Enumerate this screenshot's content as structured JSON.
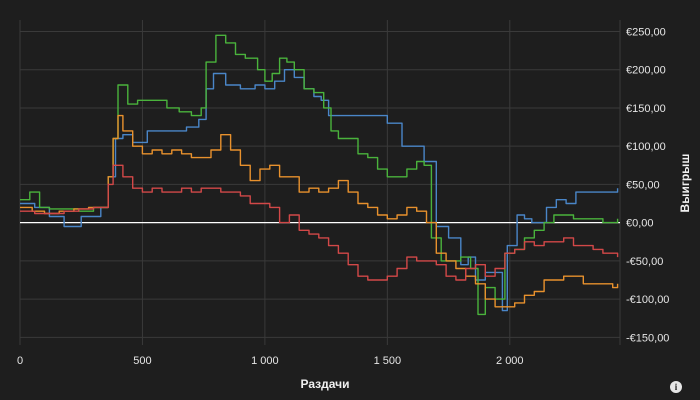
{
  "chart_data": {
    "type": "line",
    "xlabel": "Раздачи",
    "ylabel": "Выигрыш",
    "xlim": [
      0,
      2450
    ],
    "ylim": [
      -160,
      265
    ],
    "x_ticks": [
      0,
      500,
      1000,
      1500,
      2000
    ],
    "x_tick_labels": [
      "0",
      "500",
      "1 000",
      "1 500",
      "2 000"
    ],
    "y_ticks": [
      250,
      200,
      150,
      100,
      50,
      0,
      -50,
      -100,
      -150
    ],
    "y_tick_labels": [
      "€250,00",
      "€200,00",
      "€150,00",
      "€100,00",
      "€50,00",
      "€0,00",
      "-€50,00",
      "-€100,00",
      "-€150,00"
    ],
    "grid": true,
    "zero_line": true,
    "series": [
      {
        "color": "#4a86c8",
        "points": [
          [
            0,
            25
          ],
          [
            60,
            20
          ],
          [
            120,
            8
          ],
          [
            180,
            -5
          ],
          [
            250,
            8
          ],
          [
            330,
            20
          ],
          [
            360,
            60
          ],
          [
            390,
            110
          ],
          [
            420,
            115
          ],
          [
            460,
            105
          ],
          [
            520,
            120
          ],
          [
            600,
            120
          ],
          [
            680,
            125
          ],
          [
            730,
            135
          ],
          [
            760,
            175
          ],
          [
            790,
            195
          ],
          [
            840,
            180
          ],
          [
            900,
            175
          ],
          [
            960,
            180
          ],
          [
            1000,
            175
          ],
          [
            1040,
            185
          ],
          [
            1080,
            200
          ],
          [
            1120,
            190
          ],
          [
            1160,
            175
          ],
          [
            1200,
            165
          ],
          [
            1230,
            160
          ],
          [
            1260,
            140
          ],
          [
            1300,
            140
          ],
          [
            1380,
            140
          ],
          [
            1460,
            140
          ],
          [
            1500,
            130
          ],
          [
            1560,
            100
          ],
          [
            1600,
            100
          ],
          [
            1650,
            80
          ],
          [
            1700,
            -5
          ],
          [
            1750,
            -20
          ],
          [
            1800,
            -55
          ],
          [
            1830,
            -45
          ],
          [
            1860,
            -75
          ],
          [
            1900,
            -65
          ],
          [
            1940,
            -65
          ],
          [
            1970,
            -115
          ],
          [
            1990,
            -30
          ],
          [
            2030,
            10
          ],
          [
            2060,
            5
          ],
          [
            2090,
            0
          ],
          [
            2120,
            0
          ],
          [
            2150,
            20
          ],
          [
            2190,
            30
          ],
          [
            2230,
            25
          ],
          [
            2270,
            40
          ],
          [
            2310,
            40
          ],
          [
            2360,
            40
          ],
          [
            2400,
            40
          ],
          [
            2440,
            45
          ]
        ]
      },
      {
        "color": "#4ab33c",
        "points": [
          [
            0,
            30
          ],
          [
            40,
            40
          ],
          [
            80,
            20
          ],
          [
            120,
            18
          ],
          [
            180,
            18
          ],
          [
            240,
            15
          ],
          [
            300,
            20
          ],
          [
            340,
            20
          ],
          [
            360,
            60
          ],
          [
            380,
            110
          ],
          [
            400,
            180
          ],
          [
            440,
            155
          ],
          [
            480,
            160
          ],
          [
            520,
            160
          ],
          [
            560,
            160
          ],
          [
            600,
            150
          ],
          [
            650,
            145
          ],
          [
            700,
            140
          ],
          [
            740,
            150
          ],
          [
            760,
            210
          ],
          [
            800,
            245
          ],
          [
            840,
            235
          ],
          [
            880,
            220
          ],
          [
            920,
            215
          ],
          [
            970,
            200
          ],
          [
            1000,
            185
          ],
          [
            1030,
            195
          ],
          [
            1060,
            215
          ],
          [
            1090,
            210
          ],
          [
            1120,
            200
          ],
          [
            1160,
            175
          ],
          [
            1200,
            170
          ],
          [
            1240,
            150
          ],
          [
            1270,
            120
          ],
          [
            1300,
            110
          ],
          [
            1340,
            110
          ],
          [
            1380,
            90
          ],
          [
            1420,
            85
          ],
          [
            1460,
            70
          ],
          [
            1500,
            60
          ],
          [
            1540,
            60
          ],
          [
            1580,
            70
          ],
          [
            1620,
            80
          ],
          [
            1650,
            75
          ],
          [
            1680,
            -20
          ],
          [
            1720,
            -50
          ],
          [
            1760,
            -50
          ],
          [
            1800,
            -45
          ],
          [
            1840,
            -60
          ],
          [
            1870,
            -120
          ],
          [
            1900,
            -85
          ],
          [
            1940,
            -100
          ],
          [
            1980,
            -40
          ],
          [
            2020,
            -35
          ],
          [
            2060,
            -20
          ],
          [
            2100,
            -10
          ],
          [
            2140,
            0
          ],
          [
            2180,
            10
          ],
          [
            2220,
            10
          ],
          [
            2260,
            5
          ],
          [
            2300,
            5
          ],
          [
            2340,
            5
          ],
          [
            2380,
            0
          ],
          [
            2420,
            0
          ],
          [
            2440,
            5
          ]
        ]
      },
      {
        "color": "#e8912d",
        "points": [
          [
            0,
            20
          ],
          [
            50,
            15
          ],
          [
            100,
            12
          ],
          [
            160,
            15
          ],
          [
            220,
            18
          ],
          [
            280,
            20
          ],
          [
            330,
            20
          ],
          [
            360,
            60
          ],
          [
            380,
            110
          ],
          [
            400,
            140
          ],
          [
            420,
            120
          ],
          [
            460,
            100
          ],
          [
            500,
            90
          ],
          [
            540,
            95
          ],
          [
            580,
            90
          ],
          [
            620,
            95
          ],
          [
            660,
            90
          ],
          [
            700,
            85
          ],
          [
            740,
            85
          ],
          [
            780,
            95
          ],
          [
            820,
            115
          ],
          [
            860,
            95
          ],
          [
            900,
            75
          ],
          [
            940,
            55
          ],
          [
            980,
            70
          ],
          [
            1020,
            75
          ],
          [
            1060,
            60
          ],
          [
            1100,
            60
          ],
          [
            1140,
            40
          ],
          [
            1180,
            45
          ],
          [
            1220,
            40
          ],
          [
            1260,
            45
          ],
          [
            1300,
            55
          ],
          [
            1340,
            40
          ],
          [
            1380,
            25
          ],
          [
            1420,
            20
          ],
          [
            1460,
            10
          ],
          [
            1500,
            5
          ],
          [
            1540,
            10
          ],
          [
            1580,
            20
          ],
          [
            1620,
            15
          ],
          [
            1660,
            0
          ],
          [
            1700,
            -40
          ],
          [
            1740,
            -50
          ],
          [
            1780,
            -60
          ],
          [
            1820,
            -70
          ],
          [
            1860,
            -80
          ],
          [
            1900,
            -100
          ],
          [
            1940,
            -110
          ],
          [
            1980,
            -110
          ],
          [
            2020,
            -105
          ],
          [
            2060,
            -95
          ],
          [
            2100,
            -90
          ],
          [
            2140,
            -75
          ],
          [
            2180,
            -75
          ],
          [
            2220,
            -70
          ],
          [
            2260,
            -70
          ],
          [
            2300,
            -80
          ],
          [
            2340,
            -80
          ],
          [
            2380,
            -80
          ],
          [
            2420,
            -85
          ],
          [
            2440,
            -80
          ]
        ]
      },
      {
        "color": "#d24848",
        "points": [
          [
            0,
            15
          ],
          [
            60,
            12
          ],
          [
            120,
            12
          ],
          [
            180,
            15
          ],
          [
            240,
            18
          ],
          [
            300,
            20
          ],
          [
            330,
            20
          ],
          [
            360,
            50
          ],
          [
            380,
            75
          ],
          [
            420,
            60
          ],
          [
            460,
            45
          ],
          [
            500,
            40
          ],
          [
            540,
            45
          ],
          [
            580,
            40
          ],
          [
            620,
            40
          ],
          [
            660,
            45
          ],
          [
            700,
            40
          ],
          [
            740,
            45
          ],
          [
            780,
            45
          ],
          [
            820,
            40
          ],
          [
            860,
            40
          ],
          [
            900,
            35
          ],
          [
            940,
            25
          ],
          [
            980,
            25
          ],
          [
            1020,
            20
          ],
          [
            1060,
            0
          ],
          [
            1100,
            10
          ],
          [
            1140,
            -10
          ],
          [
            1180,
            -15
          ],
          [
            1220,
            -20
          ],
          [
            1260,
            -30
          ],
          [
            1300,
            -40
          ],
          [
            1340,
            -55
          ],
          [
            1380,
            -70
          ],
          [
            1420,
            -75
          ],
          [
            1460,
            -75
          ],
          [
            1500,
            -70
          ],
          [
            1540,
            -60
          ],
          [
            1580,
            -45
          ],
          [
            1620,
            -50
          ],
          [
            1660,
            -50
          ],
          [
            1700,
            -55
          ],
          [
            1740,
            -70
          ],
          [
            1780,
            -75
          ],
          [
            1820,
            -60
          ],
          [
            1860,
            -55
          ],
          [
            1900,
            -70
          ],
          [
            1940,
            -60
          ],
          [
            1980,
            -40
          ],
          [
            2020,
            -35
          ],
          [
            2060,
            -25
          ],
          [
            2100,
            -30
          ],
          [
            2140,
            -25
          ],
          [
            2180,
            -25
          ],
          [
            2220,
            -20
          ],
          [
            2260,
            -30
          ],
          [
            2300,
            -30
          ],
          [
            2340,
            -35
          ],
          [
            2380,
            -40
          ],
          [
            2420,
            -40
          ],
          [
            2440,
            -45
          ]
        ]
      }
    ]
  },
  "info_icon": "i"
}
